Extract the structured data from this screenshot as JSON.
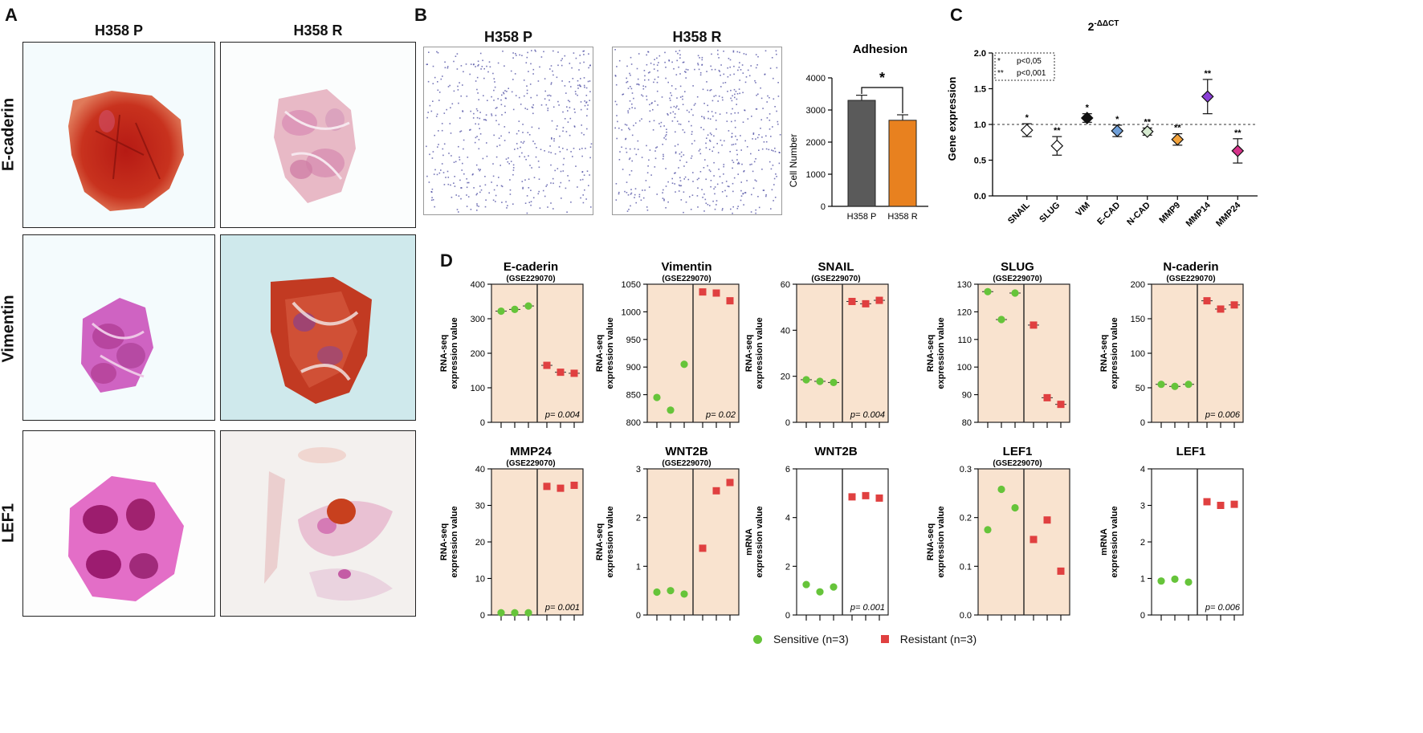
{
  "panels": {
    "a": "A",
    "b": "B",
    "c": "C",
    "d": "D"
  },
  "panelA": {
    "columns": [
      "H358 P",
      "H358 R"
    ],
    "rows": [
      "E-caderin",
      "Vimentin",
      "LEF1"
    ]
  },
  "panelB": {
    "columns": [
      "H358 P",
      "H358 R"
    ],
    "adhesion": {
      "title": "Adhesion",
      "ylabel": "Cell Number",
      "categories": [
        "H358 P",
        "H358 R"
      ],
      "values": [
        3300,
        2680
      ],
      "errors": [
        160,
        170
      ],
      "colors": [
        "#5a5a5a",
        "#e8811f"
      ],
      "yticks": [
        "0",
        "1000",
        "2000",
        "3000",
        "4000"
      ],
      "ylim": [
        0,
        4000
      ],
      "significance": "*"
    }
  },
  "panelC": {
    "title_base": "2",
    "title_sup": "-ΔΔCT",
    "ylabel": "Gene expression",
    "legend": [
      {
        "mark": "*",
        "text": "p<0,05"
      },
      {
        "mark": "**",
        "text": "p<0,001"
      }
    ],
    "yticks": [
      "0.0",
      "0.5",
      "1.0",
      "1.5",
      "2.0"
    ],
    "ylim": [
      0,
      2.0
    ],
    "reference_line": 1.0,
    "genes": [
      {
        "name": "SNAIL",
        "value": 0.92,
        "err": 0.09,
        "color": "#ffffff",
        "sig": "*"
      },
      {
        "name": "SLUG",
        "value": 0.7,
        "err": 0.13,
        "color": "#ffffff",
        "sig": "**"
      },
      {
        "name": "VIM",
        "value": 1.09,
        "err": 0.06,
        "color": "#111111",
        "sig": "*"
      },
      {
        "name": "E-CAD",
        "value": 0.91,
        "err": 0.08,
        "color": "#6f9fd8",
        "sig": "*"
      },
      {
        "name": "N-CAD",
        "value": 0.9,
        "err": 0.05,
        "color": "#d6ead0",
        "sig": "**"
      },
      {
        "name": "MMP9",
        "value": 0.79,
        "err": 0.08,
        "color": "#f2a23a",
        "sig": "**"
      },
      {
        "name": "MMP14",
        "value": 1.39,
        "err": 0.24,
        "color": "#8a3fd6",
        "sig": "**"
      },
      {
        "name": "MMP24",
        "value": 0.63,
        "err": 0.17,
        "color": "#d6338a",
        "sig": "**"
      }
    ]
  },
  "panelD": {
    "legend": {
      "sensitive": "Sensitive (n=3)",
      "resistant": "Resistant (n=3)"
    },
    "sensitive_color": "#66c43a",
    "resistant_color": "#e04040",
    "charts": [
      {
        "title": "E-caderin",
        "subtitle": "(GSE229070)",
        "ylabel": [
          "RNA-seq",
          "expression value"
        ],
        "shaded": true,
        "ylim": [
          0,
          400
        ],
        "yticks": [
          "0",
          "100",
          "200",
          "300",
          "400"
        ],
        "sensitive": [
          322,
          327,
          337
        ],
        "resistant": [
          165,
          145,
          142
        ],
        "pvalue": "p= 0.004",
        "errbars": true
      },
      {
        "title": "Vimentin",
        "subtitle": "(GSE229070)",
        "ylabel": [
          "RNA-seq",
          "expression value"
        ],
        "shaded": true,
        "ylim": [
          800,
          1050
        ],
        "yticks": [
          "800",
          "850",
          "900",
          "950",
          "1000",
          "1050"
        ],
        "sensitive": [
          845,
          822,
          905
        ],
        "resistant": [
          1036,
          1034,
          1020
        ],
        "pvalue": "p= 0.02",
        "errbars": false
      },
      {
        "title": "SNAIL",
        "subtitle": "(GSE229070)",
        "ylabel": [
          "RNA-seq",
          "expression value"
        ],
        "shaded": true,
        "ylim": [
          0,
          60
        ],
        "yticks": [
          "0",
          "20",
          "40",
          "60"
        ],
        "sensitive": [
          18.5,
          17.8,
          17.3
        ],
        "resistant": [
          52.5,
          51.5,
          53
        ],
        "pvalue": "p= 0.004",
        "errbars": true
      },
      {
        "title": "SLUG",
        "subtitle": "(GSE229070)",
        "ylabel": [
          "RNA-seq",
          "expression value"
        ],
        "shaded": true,
        "ylim": [
          80,
          130
        ],
        "yticks": [
          "80",
          "90",
          "100",
          "110",
          "120",
          "130"
        ],
        "sensitive": [
          127.3,
          117.2,
          126.8
        ],
        "resistant": [
          115.2,
          88.9,
          86.5
        ],
        "pvalue": "",
        "errbars": true
      },
      {
        "title": "N-caderin",
        "subtitle": "(GSE229070)",
        "ylabel": [
          "RNA-seq",
          "expression value"
        ],
        "shaded": true,
        "ylim": [
          0,
          200
        ],
        "yticks": [
          "0",
          "50",
          "100",
          "150",
          "200"
        ],
        "sensitive": [
          55,
          52,
          55
        ],
        "resistant": [
          176,
          164,
          170
        ],
        "pvalue": "p= 0.006",
        "errbars": true
      },
      {
        "title": "MMP24",
        "subtitle": "(GSE229070)",
        "ylabel": [
          "RNA-seq",
          "expression value"
        ],
        "shaded": true,
        "ylim": [
          0,
          40
        ],
        "yticks": [
          "0",
          "10",
          "20",
          "30",
          "40"
        ],
        "sensitive": [
          0.6,
          0.6,
          0.6
        ],
        "resistant": [
          35.2,
          34.7,
          35.5
        ],
        "pvalue": "p= 0.001",
        "errbars": false
      },
      {
        "title": "WNT2B",
        "subtitle": "(GSE229070)",
        "ylabel": [
          "RNA-seq",
          "expression value"
        ],
        "shaded": true,
        "ylim": [
          0,
          3
        ],
        "yticks": [
          "0",
          "1",
          "2",
          "3"
        ],
        "sensitive": [
          0.47,
          0.5,
          0.43
        ],
        "resistant": [
          1.37,
          2.55,
          2.72
        ],
        "pvalue": "",
        "errbars": false
      },
      {
        "title": "WNT2B",
        "subtitle": "",
        "ylabel": [
          "mRNA",
          "expression value"
        ],
        "shaded": false,
        "ylim": [
          0,
          6
        ],
        "yticks": [
          "0",
          "2",
          "4",
          "6"
        ],
        "sensitive": [
          1.25,
          0.95,
          1.15
        ],
        "resistant": [
          4.85,
          4.9,
          4.8
        ],
        "pvalue": "p= 0.001",
        "errbars": false
      },
      {
        "title": "LEF1",
        "subtitle": "(GSE229070)",
        "ylabel": [
          "RNA-seq",
          "expression value"
        ],
        "shaded": true,
        "ylim": [
          0,
          0.3
        ],
        "yticks": [
          "0.0",
          "0.1",
          "0.2",
          "0.3"
        ],
        "sensitive": [
          0.175,
          0.258,
          0.22
        ],
        "resistant": [
          0.155,
          0.195,
          0.09
        ],
        "pvalue": "",
        "errbars": false
      },
      {
        "title": "LEF1",
        "subtitle": "",
        "ylabel": [
          "mRNA",
          "expression value"
        ],
        "shaded": false,
        "ylim": [
          0,
          4
        ],
        "yticks": [
          "0",
          "1",
          "2",
          "3",
          "4"
        ],
        "sensitive": [
          0.93,
          0.98,
          0.9
        ],
        "resistant": [
          3.1,
          3.0,
          3.03
        ],
        "pvalue": "p= 0.006",
        "errbars": false
      }
    ]
  }
}
